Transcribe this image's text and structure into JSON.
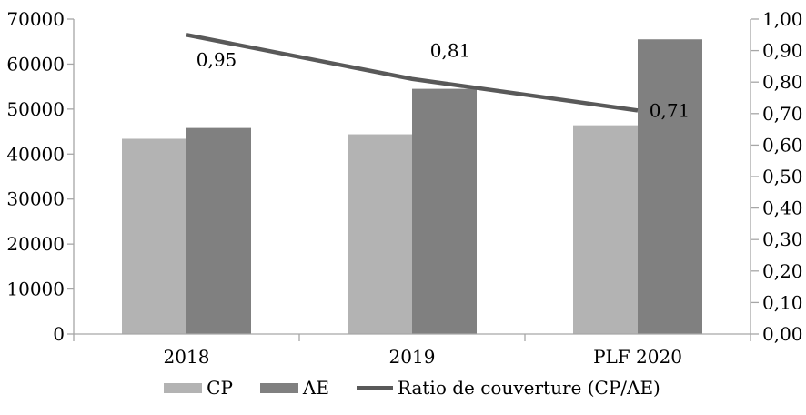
{
  "chart_data": {
    "type": "bar",
    "subtype": "bar-line-combo",
    "title": "",
    "xlabel": "",
    "ylabel": "",
    "grid": false,
    "legend_position": "bottom",
    "categories": [
      "2018",
      "2019",
      "PLF 2020"
    ],
    "series": [
      {
        "name": "CP",
        "type": "bar",
        "axis": "left",
        "color": "#b3b3b3",
        "values": [
          43400,
          44400,
          46400
        ]
      },
      {
        "name": "AE",
        "type": "bar",
        "axis": "left",
        "color": "#808080",
        "values": [
          45800,
          54500,
          65500
        ]
      },
      {
        "name": "Ratio de couverture (CP/AE)",
        "type": "line",
        "axis": "right",
        "color": "#595959",
        "values": [
          0.95,
          0.81,
          0.71
        ],
        "point_labels": [
          "0,95",
          "0,81",
          "0,71"
        ],
        "label_offsets": [
          {
            "dx": 33,
            "dy": 27
          },
          {
            "dx": 42,
            "dy": -31
          },
          {
            "dx": 35,
            "dy": 0
          }
        ]
      }
    ],
    "left_axis": {
      "min": 0,
      "max": 70000,
      "step": 10000,
      "tick_labels": [
        "70000",
        "60000",
        "50000",
        "40000",
        "30000",
        "20000",
        "10000",
        "0"
      ]
    },
    "right_axis": {
      "min": 0,
      "max": 1,
      "step": 0.1,
      "tick_labels": [
        "1,00",
        "0,90",
        "0,80",
        "0,70",
        "0,60",
        "0,50",
        "0,40",
        "0,30",
        "0,20",
        "0,10",
        "0,00"
      ]
    },
    "axis_color": "#a6a6a6",
    "text_color": "#000000"
  }
}
